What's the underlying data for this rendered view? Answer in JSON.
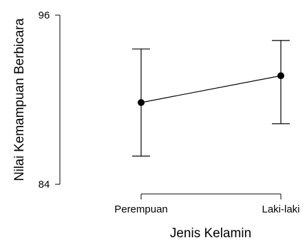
{
  "chart_data": {
    "type": "line",
    "xlabel": "Jenis Kelamin",
    "ylabel": "Nilai Kemampuan Berbicara",
    "categories": [
      "Perempuan",
      "Laki-laki"
    ],
    "values": [
      89.8,
      91.7
    ],
    "error_bars": [
      {
        "low": 86.0,
        "high": 93.6
      },
      {
        "low": 88.3,
        "high": 94.2
      }
    ],
    "ylim": [
      84,
      96
    ],
    "y_ticks": [
      "84",
      "96"
    ],
    "grid": false,
    "colors": {
      "line": "#000000",
      "marker": "#000000"
    }
  }
}
